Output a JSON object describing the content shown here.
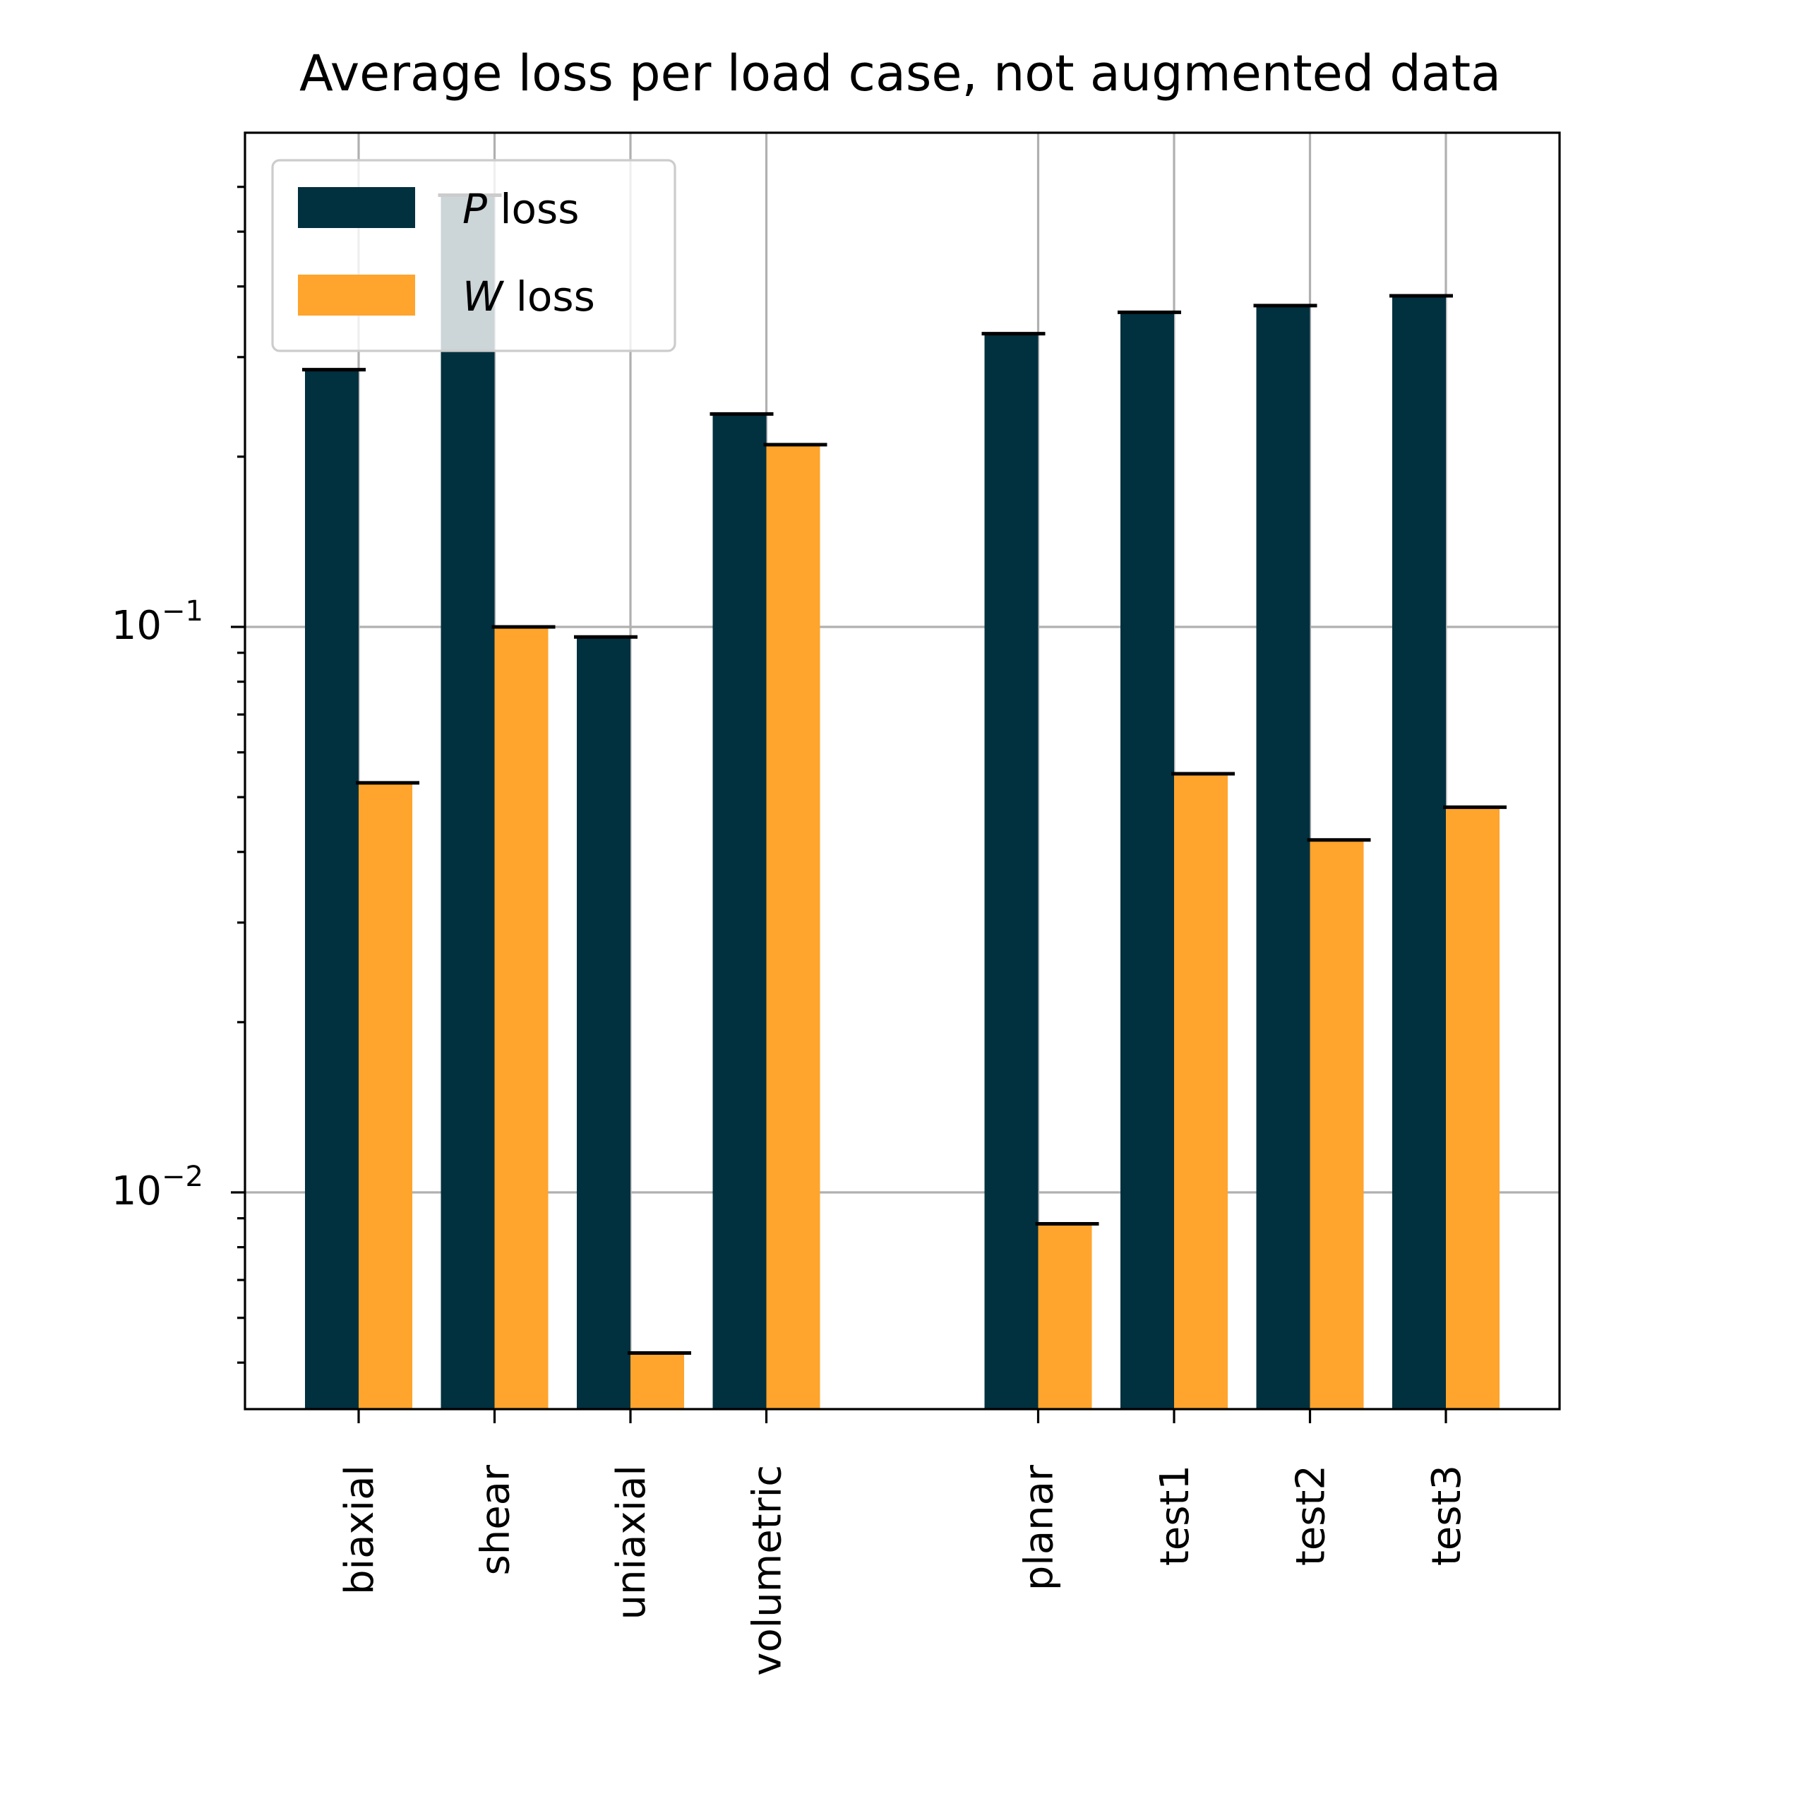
{
  "chart_data": {
    "type": "bar",
    "title": "Average loss per load case, not augmented data",
    "xlabel": "",
    "ylabel": "",
    "yscale": "log",
    "ylim": [
      0.0041,
      0.61
    ],
    "grid": true,
    "legend_position": "top-left",
    "categories": [
      "biaxial",
      "shear",
      "uniaxial",
      "volumetric",
      "planar",
      "test1",
      "test2",
      "test3"
    ],
    "category_groups": [
      [
        "biaxial",
        "shear",
        "uniaxial",
        "volumetric"
      ],
      [
        "planar",
        "test1",
        "test2",
        "test3"
      ]
    ],
    "series": [
      {
        "name": "P loss",
        "symbol": "P",
        "suffix": " loss",
        "color": "#01303f",
        "values": [
          0.285,
          0.58,
          0.096,
          0.238,
          0.33,
          0.36,
          0.37,
          0.385
        ]
      },
      {
        "name": "W loss",
        "symbol": "W",
        "suffix": " loss",
        "color": "#ffa42c",
        "values": [
          0.053,
          0.1,
          0.0052,
          0.21,
          0.0088,
          0.055,
          0.042,
          0.048
        ]
      }
    ],
    "yticks": [
      {
        "value": 0.1,
        "base": "10",
        "exp": "−1"
      },
      {
        "value": 0.01,
        "base": "10",
        "exp": "−2"
      }
    ]
  }
}
